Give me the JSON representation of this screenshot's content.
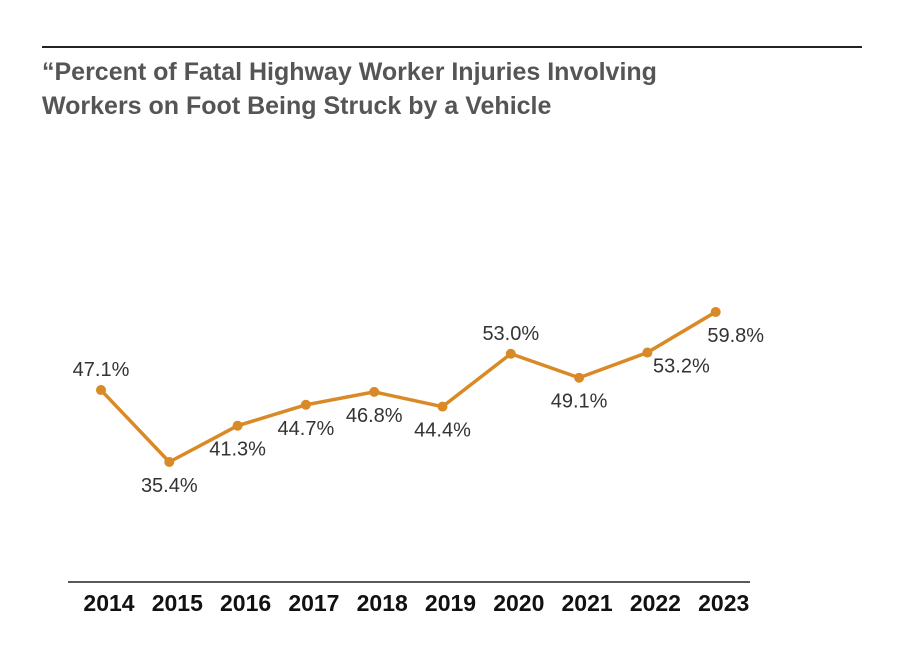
{
  "chart_data": {
    "type": "line",
    "title_lines": [
      "“Percent of Fatal Highway Worker Injuries Involving",
      "Workers on Foot Being Struck by a Vehicle"
    ],
    "xlabel": "",
    "ylabel": "",
    "categories": [
      "2014",
      "2015",
      "2016",
      "2017",
      "2018",
      "2019",
      "2020",
      "2021",
      "2022",
      "2023"
    ],
    "series": [
      {
        "values": [
          47.1,
          35.4,
          41.3,
          44.7,
          46.8,
          44.4,
          53.0,
          49.1,
          53.2,
          59.8
        ],
        "labels": [
          "47.1%",
          "35.4%",
          "41.3%",
          "44.7%",
          "46.8%",
          "44.4%",
          "53.0%",
          "49.1%",
          "53.2%",
          "59.8%"
        ],
        "color": "#D98A26"
      }
    ],
    "ylim": [
      30,
      65
    ],
    "grid": false,
    "legend": "none"
  },
  "colors": {
    "line": "#D98A26",
    "rule": "#222222",
    "title": "#555555"
  }
}
